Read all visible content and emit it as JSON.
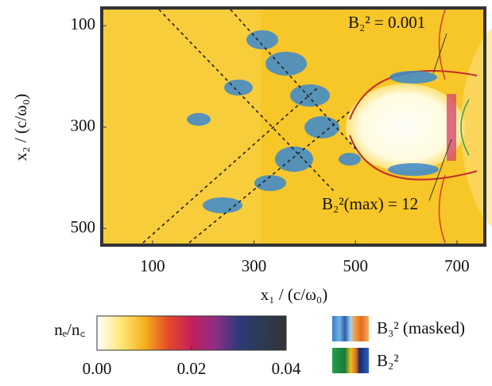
{
  "chart_data": {
    "type": "image",
    "xlabel": "x₁ / (c/ω₀)",
    "ylabel": "x₂ / (c/ω₀)",
    "xlim": [
      0,
      755
    ],
    "xticks": [
      100,
      300,
      500,
      700
    ],
    "ylim": [
      65,
      533
    ],
    "y_inverted": true,
    "yticks": [
      100,
      300,
      500
    ],
    "annotations": [
      "B₂² = 0.001",
      "B₂²(max) = 12"
    ],
    "colorbar": {
      "label": "nₑ/n꜀",
      "lim": [
        0,
        0.04
      ],
      "ticks": [
        {
          "value": 0,
          "label": "0.00"
        },
        {
          "value": 0.02,
          "label": "0.02"
        },
        {
          "value": 0.04,
          "label": "0.04"
        }
      ],
      "colors": [
        "#ffffff",
        "#fde87a",
        "#f6b21c",
        "#e64a2a",
        "#c41f5a",
        "#8e2e86",
        "#2e3a78",
        "#2b3a55",
        "#333333"
      ]
    },
    "legend": [
      "B₃² (masked)",
      "B₂²"
    ]
  }
}
